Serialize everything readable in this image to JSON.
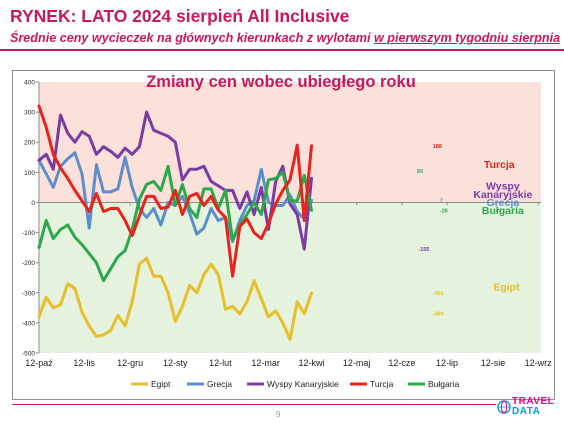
{
  "header": {
    "title": "RYNEK: LATO 2024 sierpień All Inclusive",
    "subtitle_pre": "Średnie ceny wycieczek na głównych kierunkach z wylotami ",
    "subtitle_underlined": "w pierwszym tygodniu sierpnia"
  },
  "page_number": "9",
  "logo": {
    "line1": "TRAVEL",
    "line2": "DATA"
  },
  "colors": {
    "red_zone": "#fbe1da",
    "green_zone": "#e4f2de",
    "Egipt": "#e6bf2a",
    "Grecja": "#5c8ecb",
    "Wyspy Kanaryjskie": "#7a3ba3",
    "Turcja": "#e8231c",
    "Bułgaria": "#2ba84a"
  },
  "chart_data": {
    "type": "line",
    "title": "Zmiany cen wobec ubiegłego roku",
    "ylim": [
      -500,
      400
    ],
    "yticks": [
      400,
      300,
      200,
      100,
      0,
      -100,
      -200,
      -300,
      -400,
      -500
    ],
    "xlim": [
      0,
      70
    ],
    "xticks": [
      {
        "x": 0,
        "label": "12-paź"
      },
      {
        "x": 6.3,
        "label": "12-lis"
      },
      {
        "x": 12.7,
        "label": "12-gru"
      },
      {
        "x": 19,
        "label": "12-sty"
      },
      {
        "x": 25.3,
        "label": "12-lut"
      },
      {
        "x": 31.6,
        "label": "12-mar"
      },
      {
        "x": 38,
        "label": "12-kwi"
      },
      {
        "x": 44.3,
        "label": "12-maj"
      },
      {
        "x": 50.6,
        "label": "12-cze"
      },
      {
        "x": 56.9,
        "label": "12-lip"
      },
      {
        "x": 63.3,
        "label": "12-sie"
      },
      {
        "x": 69.6,
        "label": "12-wrz"
      }
    ],
    "series_labels": [
      {
        "name": "Turcja",
        "text": "Turcja",
        "x": 60,
        "y": 115
      },
      {
        "name": "Wyspy Kanaryjskie",
        "text": "Wyspy",
        "x": 60.5,
        "y": 43
      },
      {
        "name": "Wyspy Kanaryjskie",
        "text": "Kanaryjskie",
        "x": 60.5,
        "y": 14
      },
      {
        "name": "Grecja",
        "text": "Grecja",
        "x": 60.5,
        "y": -12
      },
      {
        "name": "Bułgaria",
        "text": "Bułgaria",
        "x": 60.5,
        "y": -38
      },
      {
        "name": "Egipt",
        "text": "Egipt",
        "x": 61,
        "y": -292
      }
    ],
    "end_labels": [
      {
        "name": "Turcja",
        "text": "188",
        "x": 54.9,
        "y": 188
      },
      {
        "name": "Bułgaria",
        "text": "93",
        "x": 52.7,
        "y": 105
      },
      {
        "name": "Grecja",
        "text": "7",
        "x": 55.9,
        "y": 7
      },
      {
        "name": "Bułgaria",
        "text": "-26",
        "x": 55.9,
        "y": -26
      },
      {
        "name": "Wyspy Kanaryjskie",
        "text": "-155",
        "x": 52.9,
        "y": -155
      },
      {
        "name": "Egipt",
        "text": "-301",
        "x": 54.9,
        "y": -301
      },
      {
        "name": "Egipt",
        "text": "-369",
        "x": 54.9,
        "y": -369
      }
    ],
    "series": [
      {
        "name": "Egipt",
        "values": [
          [
            0,
            -380
          ],
          [
            1,
            -315
          ],
          [
            2,
            -350
          ],
          [
            3,
            -340
          ],
          [
            4,
            -270
          ],
          [
            5,
            -285
          ],
          [
            6,
            -365
          ],
          [
            7,
            -410
          ],
          [
            8,
            -445
          ],
          [
            9,
            -440
          ],
          [
            10,
            -425
          ],
          [
            11,
            -375
          ],
          [
            12,
            -410
          ],
          [
            13,
            -330
          ],
          [
            14,
            -205
          ],
          [
            15,
            -185
          ],
          [
            16,
            -245
          ],
          [
            17,
            -245
          ],
          [
            18,
            -300
          ],
          [
            19,
            -395
          ],
          [
            20,
            -345
          ],
          [
            21,
            -275
          ],
          [
            22,
            -300
          ],
          [
            23,
            -240
          ],
          [
            24,
            -205
          ],
          [
            25,
            -240
          ],
          [
            26,
            -355
          ],
          [
            27,
            -345
          ],
          [
            28,
            -370
          ],
          [
            29,
            -330
          ],
          [
            30,
            -260
          ],
          [
            31,
            -320
          ],
          [
            32,
            -380
          ],
          [
            33,
            -360
          ],
          [
            34,
            -400
          ],
          [
            35,
            -455
          ],
          [
            36,
            -330
          ],
          [
            37,
            -370
          ],
          [
            38,
            -301
          ]
        ]
      },
      {
        "name": "Grecja",
        "values": [
          [
            0,
            140
          ],
          [
            1,
            95
          ],
          [
            2,
            50
          ],
          [
            3,
            120
          ],
          [
            4,
            145
          ],
          [
            5,
            165
          ],
          [
            6,
            95
          ],
          [
            7,
            -85
          ],
          [
            8,
            125
          ],
          [
            9,
            35
          ],
          [
            10,
            35
          ],
          [
            11,
            45
          ],
          [
            12,
            150
          ],
          [
            13,
            50
          ],
          [
            14,
            -20
          ],
          [
            15,
            -50
          ],
          [
            16,
            -20
          ],
          [
            17,
            -75
          ],
          [
            18,
            0
          ],
          [
            19,
            -10
          ],
          [
            20,
            20
          ],
          [
            21,
            -35
          ],
          [
            22,
            -105
          ],
          [
            23,
            -85
          ],
          [
            24,
            -20
          ],
          [
            25,
            -60
          ],
          [
            26,
            -50
          ],
          [
            27,
            -130
          ],
          [
            28,
            -60
          ],
          [
            29,
            -10
          ],
          [
            30,
            5
          ],
          [
            31,
            110
          ],
          [
            32,
            0
          ],
          [
            33,
            -10
          ],
          [
            34,
            -10
          ],
          [
            35,
            25
          ],
          [
            36,
            -30
          ],
          [
            37,
            -55
          ],
          [
            38,
            7
          ]
        ]
      },
      {
        "name": "Wyspy Kanaryjskie",
        "values": [
          [
            0,
            140
          ],
          [
            1,
            160
          ],
          [
            2,
            110
          ],
          [
            3,
            290
          ],
          [
            4,
            230
          ],
          [
            5,
            200
          ],
          [
            6,
            235
          ],
          [
            7,
            220
          ],
          [
            8,
            160
          ],
          [
            9,
            185
          ],
          [
            10,
            170
          ],
          [
            11,
            150
          ],
          [
            12,
            180
          ],
          [
            13,
            160
          ],
          [
            14,
            185
          ],
          [
            15,
            300
          ],
          [
            16,
            240
          ],
          [
            17,
            230
          ],
          [
            18,
            220
          ],
          [
            19,
            200
          ],
          [
            20,
            75
          ],
          [
            21,
            110
          ],
          [
            22,
            110
          ],
          [
            23,
            120
          ],
          [
            24,
            70
          ],
          [
            25,
            55
          ],
          [
            26,
            40
          ],
          [
            27,
            40
          ],
          [
            28,
            -20
          ],
          [
            29,
            35
          ],
          [
            30,
            -40
          ],
          [
            31,
            50
          ],
          [
            32,
            -90
          ],
          [
            33,
            70
          ],
          [
            34,
            120
          ],
          [
            35,
            -5
          ],
          [
            36,
            -40
          ],
          [
            37,
            -155
          ],
          [
            38,
            80
          ]
        ]
      },
      {
        "name": "Turcja",
        "values": [
          [
            0,
            320
          ],
          [
            1,
            250
          ],
          [
            2,
            160
          ],
          [
            3,
            115
          ],
          [
            4,
            80
          ],
          [
            5,
            40
          ],
          [
            6,
            5
          ],
          [
            7,
            -30
          ],
          [
            8,
            30
          ],
          [
            9,
            -30
          ],
          [
            10,
            -20
          ],
          [
            11,
            -20
          ],
          [
            12,
            -60
          ],
          [
            13,
            -110
          ],
          [
            15,
            20
          ],
          [
            16,
            20
          ],
          [
            17,
            -20
          ],
          [
            18,
            -15
          ],
          [
            19,
            40
          ],
          [
            20,
            -40
          ],
          [
            21,
            20
          ],
          [
            22,
            30
          ],
          [
            23,
            -10
          ],
          [
            24,
            20
          ],
          [
            25,
            -25
          ],
          [
            26,
            -50
          ],
          [
            27,
            -245
          ],
          [
            28,
            -80
          ],
          [
            29,
            -55
          ],
          [
            30,
            -100
          ],
          [
            31,
            -120
          ],
          [
            32,
            -70
          ],
          [
            33,
            -5
          ],
          [
            34,
            40
          ],
          [
            35,
            75
          ],
          [
            36,
            190
          ],
          [
            37,
            -60
          ],
          [
            38,
            188
          ]
        ]
      },
      {
        "name": "Bułgaria",
        "values": [
          [
            0,
            -150
          ],
          [
            1,
            -60
          ],
          [
            2,
            -120
          ],
          [
            3,
            -90
          ],
          [
            4,
            -75
          ],
          [
            5,
            -115
          ],
          [
            6,
            -140
          ],
          [
            7,
            -170
          ],
          [
            8,
            -200
          ],
          [
            9,
            -260
          ],
          [
            10,
            -220
          ],
          [
            11,
            -180
          ],
          [
            12,
            -160
          ],
          [
            13,
            -90
          ],
          [
            14,
            10
          ],
          [
            15,
            60
          ],
          [
            16,
            70
          ],
          [
            17,
            40
          ],
          [
            18,
            120
          ],
          [
            19,
            -10
          ],
          [
            20,
            60
          ],
          [
            21,
            -20
          ],
          [
            22,
            -50
          ],
          [
            23,
            45
          ],
          [
            24,
            45
          ],
          [
            25,
            -20
          ],
          [
            26,
            40
          ],
          [
            27,
            -125
          ],
          [
            28,
            -75
          ],
          [
            29,
            -40
          ],
          [
            30,
            0
          ],
          [
            31,
            -40
          ],
          [
            32,
            75
          ],
          [
            33,
            80
          ],
          [
            34,
            100
          ],
          [
            35,
            5
          ],
          [
            36,
            5
          ],
          [
            37,
            90
          ],
          [
            38,
            -26
          ]
        ]
      }
    ],
    "legend": {
      "placement": "bottom",
      "entries": [
        "Egipt",
        "Grecja",
        "Wyspy Kanaryjskie",
        "Turcja",
        "Bułgaria"
      ]
    },
    "background_zones": [
      {
        "from": 0,
        "to": 400,
        "color": "red_zone"
      },
      {
        "from": -500,
        "to": 0,
        "color": "green_zone"
      }
    ]
  }
}
